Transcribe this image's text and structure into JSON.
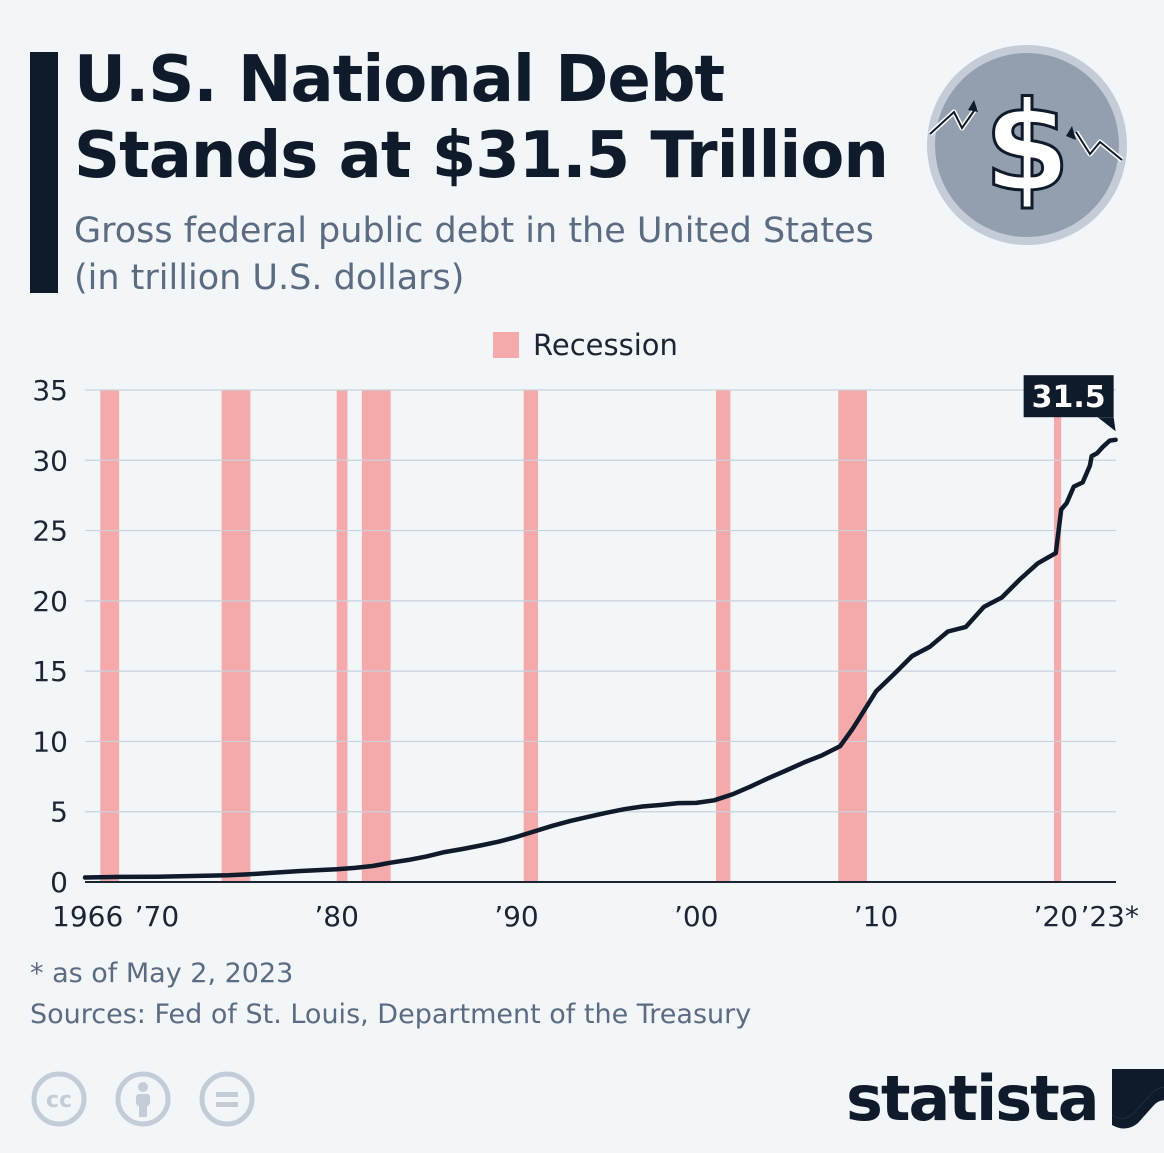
{
  "header": {
    "title_line1": "U.S. National Debt",
    "title_line2": "Stands at $31.5 Trillion",
    "subtitle_line1": "Gross federal public debt in the United States",
    "subtitle_line2": "(in trillion U.S. dollars)"
  },
  "icons": {
    "coin": "dollar-coin-icon",
    "cc": "creative-commons-icon",
    "by": "attribution-icon",
    "nd": "no-derivatives-icon",
    "brand_mark": "statista-mark-icon"
  },
  "colors": {
    "background": "#f3f6f9",
    "line": "#0f1a2b",
    "recession": "#f4a9aa",
    "grid": "#c9d1dc",
    "text_muted": "#5b6b82"
  },
  "chart_data": {
    "type": "line",
    "title": "U.S. National Debt Stands at $31.5 Trillion",
    "subtitle": "Gross federal public debt in the United States (in trillion U.S. dollars)",
    "xlim": [
      1966,
      2023.35
    ],
    "ylim": [
      0,
      35
    ],
    "y_ticks": [
      0,
      5,
      10,
      15,
      20,
      25,
      30,
      35
    ],
    "x_ticks": [
      {
        "year": 1966,
        "label": "1966"
      },
      {
        "year": 1970,
        "label": "’70"
      },
      {
        "year": 1980,
        "label": "’80"
      },
      {
        "year": 1990,
        "label": "’90"
      },
      {
        "year": 2000,
        "label": "’00"
      },
      {
        "year": 2010,
        "label": "’10"
      },
      {
        "year": 2020,
        "label": "’20"
      },
      {
        "year": 2023,
        "label": "’23*"
      }
    ],
    "grid": true,
    "legend": {
      "label": "Recession",
      "position": "top-center"
    },
    "recessions": [
      {
        "start": 1966.85,
        "end": 1967.9
      },
      {
        "start": 1973.6,
        "end": 1975.2
      },
      {
        "start": 1980.0,
        "end": 1980.6
      },
      {
        "start": 1981.4,
        "end": 1983.0
      },
      {
        "start": 1990.4,
        "end": 1991.2
      },
      {
        "start": 2001.1,
        "end": 2001.9
      },
      {
        "start": 2007.9,
        "end": 2009.5
      },
      {
        "start": 2019.9,
        "end": 2020.3
      }
    ],
    "series": [
      {
        "values": [
          [
            1966.0,
            0.32
          ],
          [
            1968.0,
            0.36
          ],
          [
            1970.0,
            0.38
          ],
          [
            1972.0,
            0.43
          ],
          [
            1974.0,
            0.48
          ],
          [
            1975.0,
            0.54
          ],
          [
            1976.0,
            0.62
          ],
          [
            1978.0,
            0.78
          ],
          [
            1980.0,
            0.91
          ],
          [
            1981.0,
            1.0
          ],
          [
            1982.0,
            1.14
          ],
          [
            1983.0,
            1.37
          ],
          [
            1984.0,
            1.57
          ],
          [
            1985.0,
            1.82
          ],
          [
            1986.0,
            2.13
          ],
          [
            1987.0,
            2.35
          ],
          [
            1988.0,
            2.6
          ],
          [
            1989.0,
            2.87
          ],
          [
            1990.0,
            3.21
          ],
          [
            1991.0,
            3.6
          ],
          [
            1992.0,
            4.0
          ],
          [
            1993.0,
            4.35
          ],
          [
            1994.0,
            4.64
          ],
          [
            1995.0,
            4.92
          ],
          [
            1996.0,
            5.18
          ],
          [
            1997.0,
            5.37
          ],
          [
            1998.0,
            5.48
          ],
          [
            1999.0,
            5.61
          ],
          [
            2000.0,
            5.63
          ],
          [
            2001.0,
            5.81
          ],
          [
            2002.0,
            6.23
          ],
          [
            2003.0,
            6.78
          ],
          [
            2004.0,
            7.38
          ],
          [
            2005.0,
            7.93
          ],
          [
            2006.0,
            8.51
          ],
          [
            2007.0,
            9.01
          ],
          [
            2008.0,
            9.65
          ],
          [
            2008.7,
            10.9
          ],
          [
            2009.0,
            11.5
          ],
          [
            2010.0,
            13.56
          ],
          [
            2011.0,
            14.79
          ],
          [
            2012.0,
            16.07
          ],
          [
            2013.0,
            16.74
          ],
          [
            2014.0,
            17.82
          ],
          [
            2015.0,
            18.15
          ],
          [
            2016.0,
            19.57
          ],
          [
            2017.0,
            20.24
          ],
          [
            2018.0,
            21.52
          ],
          [
            2019.0,
            22.67
          ],
          [
            2020.0,
            23.4
          ],
          [
            2020.3,
            26.5
          ],
          [
            2020.6,
            26.95
          ],
          [
            2021.0,
            28.13
          ],
          [
            2021.5,
            28.43
          ],
          [
            2021.9,
            29.62
          ],
          [
            2022.0,
            30.3
          ],
          [
            2022.3,
            30.5
          ],
          [
            2022.6,
            30.93
          ],
          [
            2023.0,
            31.4
          ],
          [
            2023.33,
            31.46
          ]
        ]
      }
    ],
    "callout": {
      "label": "31.5",
      "year": 2023.33,
      "value": 31.5
    }
  },
  "footer": {
    "footnote": "* as of May 2, 2023",
    "sources": "Sources: Fed of St. Louis, Department of the Treasury",
    "brand": "statista"
  }
}
